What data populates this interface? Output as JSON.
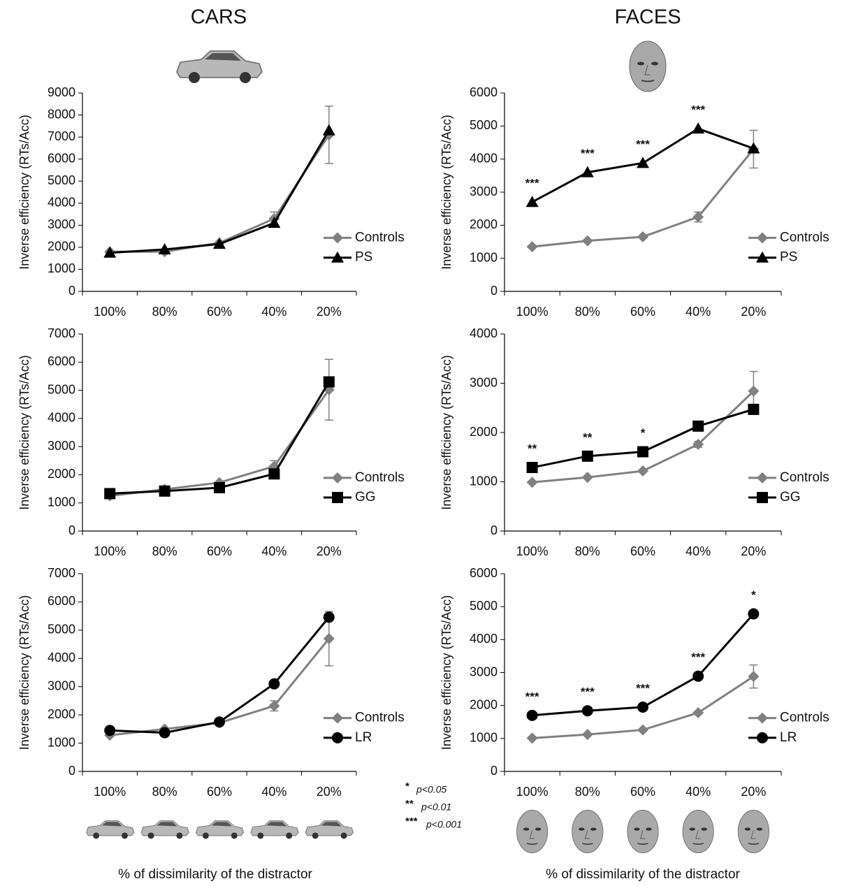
{
  "column_titles": [
    "CARS",
    "FACES"
  ],
  "x_axis_titles": [
    "% of dissimilarity of the distractor",
    "% of dissimilarity of the distractor"
  ],
  "significance_key": [
    {
      "symbol": "*",
      "label": "p<0.05"
    },
    {
      "symbol": "**",
      "label": "p<0.01"
    },
    {
      "symbol": "***",
      "label": "p<0.001"
    }
  ],
  "chart_data": [
    {
      "type": "line",
      "ylabel": "Inverse efficiency (RTs/Acc)",
      "categories": [
        "100%",
        "80%",
        "60%",
        "40%",
        "20%"
      ],
      "ylim": [
        0,
        9000
      ],
      "yticks": [
        0,
        1000,
        2000,
        3000,
        4000,
        5000,
        6000,
        7000,
        8000,
        9000
      ],
      "legend": "lower right",
      "series": [
        {
          "name": "Controls",
          "color": "#808080",
          "marker": "diamond",
          "values": [
            1800,
            1800,
            2200,
            3300,
            7100
          ],
          "errors": [
            null,
            null,
            null,
            300,
            1300
          ]
        },
        {
          "name": "PS",
          "color": "#000000",
          "marker": "triangle",
          "values": [
            1750,
            1900,
            2150,
            3100,
            7300
          ]
        }
      ]
    },
    {
      "type": "line",
      "ylabel": "Inverse efficiency (RTs/Acc)",
      "categories": [
        "100%",
        "80%",
        "60%",
        "40%",
        "20%"
      ],
      "ylim": [
        0,
        6000
      ],
      "yticks": [
        0,
        1000,
        2000,
        3000,
        4000,
        5000,
        6000
      ],
      "legend": "lower right",
      "series": [
        {
          "name": "Controls",
          "color": "#808080",
          "marker": "diamond",
          "values": [
            1350,
            1530,
            1650,
            2250,
            4300
          ],
          "errors": [
            null,
            null,
            null,
            150,
            570
          ]
        },
        {
          "name": "PS",
          "color": "#000000",
          "marker": "triangle",
          "values": [
            2700,
            3600,
            3880,
            4920,
            4320
          ]
        }
      ],
      "significance": [
        "***",
        "***",
        "***",
        "***",
        null
      ]
    },
    {
      "type": "line",
      "ylabel": "Inverse efficiency (RTs/Acc)",
      "categories": [
        "100%",
        "80%",
        "60%",
        "40%",
        "20%"
      ],
      "ylim": [
        0,
        7000
      ],
      "yticks": [
        0,
        1000,
        2000,
        3000,
        4000,
        5000,
        6000,
        7000
      ],
      "legend": "lower right",
      "series": [
        {
          "name": "Controls",
          "color": "#808080",
          "marker": "diamond",
          "values": [
            1250,
            1480,
            1720,
            2300,
            5020
          ],
          "errors": [
            null,
            null,
            null,
            200,
            1080
          ]
        },
        {
          "name": "GG",
          "color": "#000000",
          "marker": "square",
          "values": [
            1330,
            1420,
            1540,
            2030,
            5300
          ]
        }
      ]
    },
    {
      "type": "line",
      "ylabel": "Inverse efficiency (RTs/Acc)",
      "categories": [
        "100%",
        "80%",
        "60%",
        "40%",
        "20%"
      ],
      "ylim": [
        0,
        4000
      ],
      "yticks": [
        0,
        1000,
        2000,
        3000,
        4000
      ],
      "legend": "lower right",
      "series": [
        {
          "name": "Controls",
          "color": "#808080",
          "marker": "diamond",
          "values": [
            990,
            1090,
            1220,
            1760,
            2840
          ],
          "errors": [
            null,
            null,
            null,
            60,
            400
          ]
        },
        {
          "name": "GG",
          "color": "#000000",
          "marker": "square",
          "values": [
            1290,
            1520,
            1610,
            2130,
            2470
          ]
        }
      ],
      "significance": [
        "**",
        "**",
        "*",
        null,
        null
      ]
    },
    {
      "type": "line",
      "ylabel": "Inverse efficiency (RTs/Acc)",
      "categories": [
        "100%",
        "80%",
        "60%",
        "40%",
        "20%"
      ],
      "ylim": [
        0,
        7000
      ],
      "yticks": [
        0,
        1000,
        2000,
        3000,
        4000,
        5000,
        6000,
        7000
      ],
      "legend": "lower right",
      "series": [
        {
          "name": "Controls",
          "color": "#808080",
          "marker": "diamond",
          "values": [
            1280,
            1500,
            1720,
            2320,
            4700
          ],
          "errors": [
            null,
            null,
            null,
            180,
            960
          ]
        },
        {
          "name": "LR",
          "color": "#000000",
          "marker": "circle",
          "values": [
            1450,
            1370,
            1750,
            3100,
            5460
          ]
        }
      ]
    },
    {
      "type": "line",
      "ylabel": "Inverse efficiency (RTs/Acc)",
      "categories": [
        "100%",
        "80%",
        "60%",
        "40%",
        "20%"
      ],
      "ylim": [
        0,
        6000
      ],
      "yticks": [
        0,
        1000,
        2000,
        3000,
        4000,
        5000,
        6000
      ],
      "legend": "lower right",
      "series": [
        {
          "name": "Controls",
          "color": "#808080",
          "marker": "diamond",
          "values": [
            1010,
            1120,
            1260,
            1780,
            2880
          ],
          "errors": [
            null,
            null,
            null,
            null,
            350
          ]
        },
        {
          "name": "LR",
          "color": "#000000",
          "marker": "circle",
          "values": [
            1700,
            1840,
            1950,
            2890,
            4780
          ]
        }
      ],
      "significance": [
        "***",
        "***",
        "***",
        "***",
        "*"
      ]
    }
  ]
}
